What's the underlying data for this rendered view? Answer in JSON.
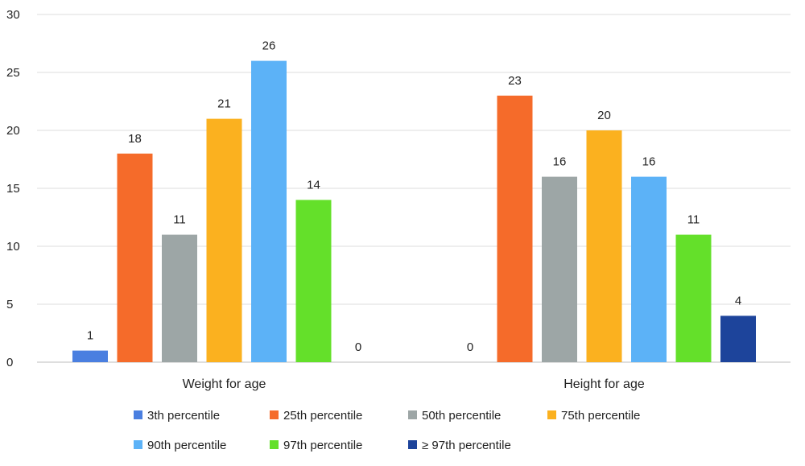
{
  "chart_data": {
    "type": "bar",
    "title": "",
    "xlabel": "",
    "ylabel": "",
    "ylim": [
      0,
      30
    ],
    "yticks": [
      0,
      5,
      10,
      15,
      20,
      25,
      30
    ],
    "grid": true,
    "legend_position": "bottom",
    "categories": [
      "Weight for age",
      "Height for age"
    ],
    "series": [
      {
        "name": "3th percentile",
        "color": "#4a7fe0",
        "values": [
          1,
          0
        ]
      },
      {
        "name": "25th percentile",
        "color": "#f56b2a",
        "values": [
          18,
          23
        ]
      },
      {
        "name": "50th percentile",
        "color": "#9da6a6",
        "values": [
          11,
          16
        ]
      },
      {
        "name": "75th percentile",
        "color": "#fbb11f",
        "values": [
          21,
          20
        ]
      },
      {
        "name": "90th percentile",
        "color": "#5cb2f7",
        "values": [
          26,
          16
        ]
      },
      {
        "name": "97th percentile",
        "color": "#64e02a",
        "values": [
          14,
          11
        ]
      },
      {
        "name": "≥ 97th percentile",
        "color": "#1d449b",
        "values": [
          0,
          4
        ]
      }
    ]
  }
}
